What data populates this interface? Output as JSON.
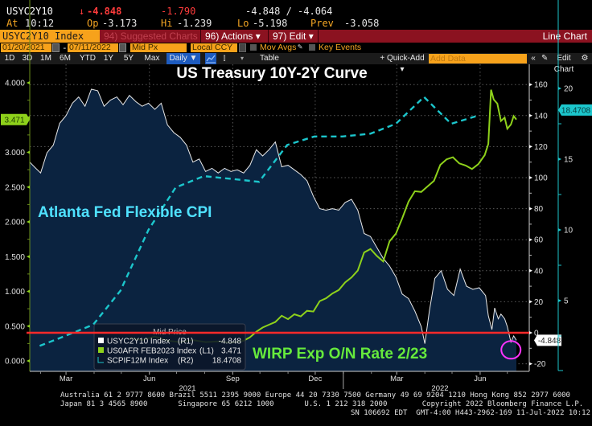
{
  "ticker": {
    "symbol": "USYC2Y10",
    "last_arrow": "↓",
    "last": "-4.848",
    "change": "-1.790",
    "bid_ask": "-4.848 / -4.064",
    "at_label": "At",
    "at_time": "10:12",
    "op_label": "Op",
    "op": "-3.173",
    "hi_label": "Hi",
    "hi": "-1.239",
    "lo_label": "Lo",
    "lo": "-5.198",
    "prev_label": "Prev",
    "prev": "-3.058"
  },
  "menubar": {
    "security": "USYC2Y10 Index",
    "suggested": "94) Suggested Charts",
    "actions": "96) Actions ▾",
    "edit": "97) Edit ▾",
    "chart_type": "Line Chart"
  },
  "settings": {
    "start_date": "01/20/2021",
    "dash": "-",
    "end_date": "07/11/2022",
    "price_field": "Mid Px",
    "currency": "Local CCY",
    "mov_avgs": "Mov Avgs",
    "key_events": "Key Events"
  },
  "toolbar": {
    "periods": [
      "1D",
      "3D",
      "1M",
      "6M",
      "YTD",
      "1Y",
      "5Y",
      "Max"
    ],
    "frequency": "Daily ▼",
    "table": "Table",
    "quick_add": "+ Quick-Add ▾",
    "add_data_placeholder": "Add Data",
    "collapse": "«",
    "edit_chart": "Edit Chart"
  },
  "chart_data": {
    "type": "line",
    "title": "US Treasury 10Y-2Y Curve",
    "annotations": [
      "Atlanta Fed Flexible CPI",
      "WIRP Exp O/N Rate 2/23"
    ],
    "x_ticks": [
      "Mar",
      "Jun",
      "Sep",
      "Dec",
      "Mar",
      "Jun"
    ],
    "x_years": [
      "2021",
      "2022"
    ],
    "x_range": [
      "2021-01-20",
      "2022-07-11"
    ],
    "grid": true,
    "legend_position": "bottom-left",
    "legend_title": "Mid Price",
    "axes": {
      "L1": {
        "ticks": [
          "4.000",
          "3.500",
          "3.000",
          "2.500",
          "2.000",
          "1.500",
          "1.000",
          "0.500",
          "0.000"
        ],
        "range": [
          -0.05,
          4.3
        ]
      },
      "R1": {
        "ticks": [
          "160",
          "140",
          "120",
          "100",
          "80",
          "60",
          "40",
          "20",
          "0",
          "-20"
        ],
        "range": [
          -22,
          170
        ]
      },
      "R2": {
        "ticks": [
          "20",
          "15",
          "10",
          "5"
        ],
        "range": [
          0,
          21.5
        ]
      }
    },
    "last_value_labels": {
      "L1": "3.471",
      "R1": "-4.848",
      "R2": "18.4708"
    },
    "reference_line": {
      "axis": "R1",
      "value": 0,
      "color": "#ff2a2a"
    },
    "highlight_circle": {
      "date": "2022-07-05",
      "axis": "R1",
      "value": -10,
      "color": "#ff33ff"
    },
    "series": [
      {
        "name": "USYC2Y10 Index",
        "axis": "R1",
        "legend_value": "-4.848",
        "color": "#e8e8e8",
        "fill": "#0b2340",
        "style": "area",
        "points": [
          [
            "2021-01-20",
            110
          ],
          [
            "2021-01-25",
            107
          ],
          [
            "2021-02-01",
            103
          ],
          [
            "2021-02-08",
            116
          ],
          [
            "2021-02-15",
            121
          ],
          [
            "2021-02-22",
            135
          ],
          [
            "2021-03-01",
            140
          ],
          [
            "2021-03-08",
            148
          ],
          [
            "2021-03-15",
            152
          ],
          [
            "2021-03-22",
            146
          ],
          [
            "2021-03-29",
            157
          ],
          [
            "2021-04-05",
            156
          ],
          [
            "2021-04-12",
            146
          ],
          [
            "2021-04-19",
            150
          ],
          [
            "2021-04-26",
            152
          ],
          [
            "2021-05-03",
            147
          ],
          [
            "2021-05-10",
            153
          ],
          [
            "2021-05-17",
            149
          ],
          [
            "2021-05-24",
            146
          ],
          [
            "2021-05-31",
            148
          ],
          [
            "2021-06-07",
            144
          ],
          [
            "2021-06-14",
            148
          ],
          [
            "2021-06-21",
            134
          ],
          [
            "2021-06-28",
            129
          ],
          [
            "2021-07-05",
            126
          ],
          [
            "2021-07-12",
            121
          ],
          [
            "2021-07-19",
            110
          ],
          [
            "2021-07-26",
            112
          ],
          [
            "2021-08-02",
            104
          ],
          [
            "2021-08-09",
            106
          ],
          [
            "2021-08-16",
            103
          ],
          [
            "2021-08-23",
            106
          ],
          [
            "2021-08-30",
            104
          ],
          [
            "2021-09-06",
            105
          ],
          [
            "2021-09-13",
            103
          ],
          [
            "2021-09-20",
            108
          ],
          [
            "2021-09-27",
            118
          ],
          [
            "2021-10-04",
            114
          ],
          [
            "2021-10-11",
            118
          ],
          [
            "2021-10-18",
            123
          ],
          [
            "2021-10-25",
            107
          ],
          [
            "2021-11-01",
            108
          ],
          [
            "2021-11-08",
            105
          ],
          [
            "2021-11-15",
            102
          ],
          [
            "2021-11-22",
            98
          ],
          [
            "2021-11-29",
            88
          ],
          [
            "2021-12-06",
            80
          ],
          [
            "2021-12-13",
            79
          ],
          [
            "2021-12-20",
            80
          ],
          [
            "2021-12-27",
            79
          ],
          [
            "2022-01-03",
            84
          ],
          [
            "2022-01-10",
            86
          ],
          [
            "2022-01-17",
            79
          ],
          [
            "2022-01-24",
            64
          ],
          [
            "2022-01-31",
            62
          ],
          [
            "2022-02-07",
            55
          ],
          [
            "2022-02-14",
            48
          ],
          [
            "2022-02-21",
            43
          ],
          [
            "2022-02-28",
            36
          ],
          [
            "2022-03-07",
            25
          ],
          [
            "2022-03-14",
            22
          ],
          [
            "2022-03-21",
            14
          ],
          [
            "2022-03-28",
            4
          ],
          [
            "2022-04-01",
            -7
          ],
          [
            "2022-04-06",
            14
          ],
          [
            "2022-04-12",
            35
          ],
          [
            "2022-04-19",
            40
          ],
          [
            "2022-04-26",
            28
          ],
          [
            "2022-05-03",
            24
          ],
          [
            "2022-05-10",
            41
          ],
          [
            "2022-05-17",
            30
          ],
          [
            "2022-05-24",
            28
          ],
          [
            "2022-05-31",
            29
          ],
          [
            "2022-06-07",
            24
          ],
          [
            "2022-06-10",
            11
          ],
          [
            "2022-06-14",
            2
          ],
          [
            "2022-06-17",
            16
          ],
          [
            "2022-06-21",
            9
          ],
          [
            "2022-06-24",
            12
          ],
          [
            "2022-06-28",
            9
          ],
          [
            "2022-07-01",
            4
          ],
          [
            "2022-07-05",
            -6
          ],
          [
            "2022-07-08",
            -2
          ],
          [
            "2022-07-11",
            -4.848
          ]
        ]
      },
      {
        "name": "US0AFR FEB2023 Index",
        "axis": "L1",
        "legend_value": "3.471",
        "color": "#8ed11b",
        "style": "line",
        "points": [
          [
            "2021-05-10",
            0.33
          ],
          [
            "2021-05-24",
            0.3
          ],
          [
            "2021-06-07",
            0.35
          ],
          [
            "2021-06-21",
            0.29
          ],
          [
            "2021-07-05",
            0.27
          ],
          [
            "2021-07-19",
            0.3
          ],
          [
            "2021-08-02",
            0.27
          ],
          [
            "2021-08-16",
            0.28
          ],
          [
            "2021-08-30",
            0.26
          ],
          [
            "2021-09-13",
            0.29
          ],
          [
            "2021-09-20",
            0.34
          ],
          [
            "2021-09-27",
            0.42
          ],
          [
            "2021-10-04",
            0.48
          ],
          [
            "2021-10-11",
            0.52
          ],
          [
            "2021-10-18",
            0.56
          ],
          [
            "2021-10-25",
            0.65
          ],
          [
            "2021-11-01",
            0.6
          ],
          [
            "2021-11-08",
            0.67
          ],
          [
            "2021-11-15",
            0.64
          ],
          [
            "2021-11-22",
            0.72
          ],
          [
            "2021-11-29",
            0.71
          ],
          [
            "2021-12-06",
            0.86
          ],
          [
            "2021-12-13",
            0.9
          ],
          [
            "2021-12-20",
            0.97
          ],
          [
            "2021-12-27",
            1.02
          ],
          [
            "2022-01-03",
            1.13
          ],
          [
            "2022-01-10",
            1.2
          ],
          [
            "2022-01-17",
            1.3
          ],
          [
            "2022-01-24",
            1.56
          ],
          [
            "2022-01-31",
            1.61
          ],
          [
            "2022-02-07",
            1.51
          ],
          [
            "2022-02-14",
            1.43
          ],
          [
            "2022-02-21",
            1.72
          ],
          [
            "2022-02-28",
            1.83
          ],
          [
            "2022-03-07",
            2.05
          ],
          [
            "2022-03-14",
            2.29
          ],
          [
            "2022-03-21",
            2.44
          ],
          [
            "2022-03-28",
            2.43
          ],
          [
            "2022-04-04",
            2.51
          ],
          [
            "2022-04-11",
            2.59
          ],
          [
            "2022-04-18",
            2.82
          ],
          [
            "2022-04-25",
            2.9
          ],
          [
            "2022-05-02",
            2.93
          ],
          [
            "2022-05-09",
            2.84
          ],
          [
            "2022-05-16",
            2.81
          ],
          [
            "2022-05-23",
            2.76
          ],
          [
            "2022-05-30",
            2.83
          ],
          [
            "2022-06-06",
            2.96
          ],
          [
            "2022-06-10",
            3.12
          ],
          [
            "2022-06-13",
            3.9
          ],
          [
            "2022-06-16",
            3.76
          ],
          [
            "2022-06-20",
            3.7
          ],
          [
            "2022-06-24",
            3.45
          ],
          [
            "2022-06-28",
            3.5
          ],
          [
            "2022-07-01",
            3.34
          ],
          [
            "2022-07-05",
            3.4
          ],
          [
            "2022-07-08",
            3.52
          ],
          [
            "2022-07-11",
            3.471
          ]
        ]
      },
      {
        "name": "SCPIF12M Index",
        "axis": "R2",
        "legend_value": "18.4708",
        "color": "#1cc6cc",
        "style": "dashed",
        "points": [
          [
            "2021-01-31",
            1.8
          ],
          [
            "2021-02-28",
            2.5
          ],
          [
            "2021-03-31",
            3.3
          ],
          [
            "2021-04-30",
            5.7
          ],
          [
            "2021-05-31",
            10.0
          ],
          [
            "2021-06-30",
            13.0
          ],
          [
            "2021-07-31",
            13.8
          ],
          [
            "2021-08-31",
            13.6
          ],
          [
            "2021-09-30",
            13.4
          ],
          [
            "2021-10-31",
            16.0
          ],
          [
            "2021-11-30",
            16.6
          ],
          [
            "2021-12-31",
            16.6
          ],
          [
            "2022-01-31",
            16.8
          ],
          [
            "2022-02-28",
            17.5
          ],
          [
            "2022-03-31",
            19.4
          ],
          [
            "2022-04-30",
            17.5
          ],
          [
            "2022-05-31",
            18.1
          ]
        ]
      }
    ]
  },
  "footer": {
    "line1": "Australia 61 2 9777 8600 Brazil 5511 2395 9000 Europe 44 20 7330 7500 Germany 49 69 9204 1210 Hong Kong 852 2977 6000",
    "line2": "Japan 81 3 4565 8900       Singapore 65 6212 1000       U.S. 1 212 318 2000        Copyright 2022 Bloomberg Finance L.P.",
    "line3": "SN 106692 EDT  GMT-4:00 H443-2962-169 11-Jul-2022 10:12:27"
  }
}
